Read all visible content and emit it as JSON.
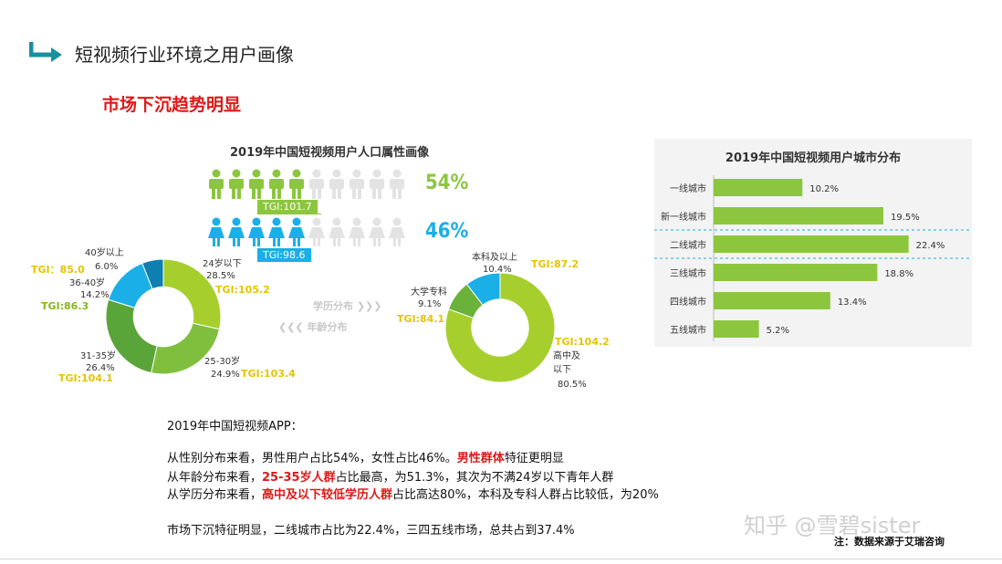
{
  "header": {
    "title": "短视频行业环境之用户画像",
    "subtitle": "市场下沉趋势明显"
  },
  "left_chart_title": "2019年中国短视频用户人口属性画像",
  "gender": {
    "male_pct": "54%",
    "male_tgi": "TGI:101.7",
    "female_pct": "46%",
    "female_tgi": "TGi:98.6",
    "male_color": "#8cc63f",
    "female_color": "#1aafe6"
  },
  "middle_labels": {
    "education": "学历分布",
    "age": "年龄分布"
  },
  "age_donut": {
    "labels": [
      {
        "name": "24岁以下",
        "value": "28.5%",
        "tgi": "TGI:105.2"
      },
      {
        "name": "25-30岁",
        "value": "24.9%",
        "tgi": "TGI:103.4"
      },
      {
        "name": "31-35岁",
        "value": "26.4%",
        "tgi": "TGI:104.1"
      },
      {
        "name": "36-40岁",
        "value": "14.2%",
        "tgi": "TGI:86.3"
      },
      {
        "name": "40岁以上",
        "value": "6.0%",
        "tgi": "TGI：85.0"
      }
    ]
  },
  "edu_donut": {
    "labels": [
      {
        "name": "本科及以上",
        "value": "10.4%",
        "tgi": "TGI:87.2"
      },
      {
        "name": "大学专科",
        "value": "9.1%",
        "tgi": "TGI:84.1"
      },
      {
        "name": "高中及以下",
        "value": "80.5%",
        "tgi": "TGI:104.2"
      }
    ]
  },
  "chart_data": [
    {
      "type": "pie",
      "categories": [
        "24岁以下",
        "25-30岁",
        "31-35岁",
        "36-40岁",
        "40岁以上"
      ],
      "values": [
        28.5,
        24.9,
        26.4,
        14.2,
        6.0
      ],
      "colors": [
        "#a6cf2e",
        "#7fbf3d",
        "#5aa53a",
        "#1aafe6",
        "#0d7fb0"
      ],
      "title": ""
    },
    {
      "type": "pie",
      "categories": [
        "高中及以下",
        "大学专科",
        "本科及以上"
      ],
      "values": [
        80.5,
        9.1,
        10.4
      ],
      "colors": [
        "#a6cf2e",
        "#6bb23a",
        "#1aafe6"
      ],
      "title": ""
    },
    {
      "type": "bar",
      "title": "2019年中国短视频用户城市分布",
      "categories": [
        "一线城市",
        "新一线城市",
        "二线城市",
        "三线城市",
        "四线城市",
        "五线城市"
      ],
      "values": [
        10.2,
        19.5,
        22.4,
        18.8,
        13.4,
        5.2
      ],
      "value_labels": [
        "10.2%",
        "19.5%",
        "22.4%",
        "18.8%",
        "13.4%",
        "5.2%"
      ],
      "xlim": [
        0,
        26
      ],
      "color": "#8cc63f"
    }
  ],
  "text": {
    "heading": "2019年中国短视频APP：",
    "line1_a": "从性别分布来看，男性用户占比54%，女性占比46%。",
    "line1_b": "男性群体",
    "line1_c": "特征更明显",
    "line2_a": "从年龄分布来看，",
    "line2_b": "25-35岁人群",
    "line2_c": "占比最高，为51.3%，其次为不满24岁以下青年人群",
    "line3_a": "从学历分布来看，",
    "line3_b": "高中及以下较低学历人群",
    "line3_c": "占比高达80%，本科及专科人群占比较低，为20%",
    "line4": "市场下沉特征明显，二线城市占比为22.4%，三四五线市场，总共占到37.4%"
  },
  "watermark": "知乎 @雪碧sister",
  "footnote": "注：数据来源于艾瑞咨询"
}
